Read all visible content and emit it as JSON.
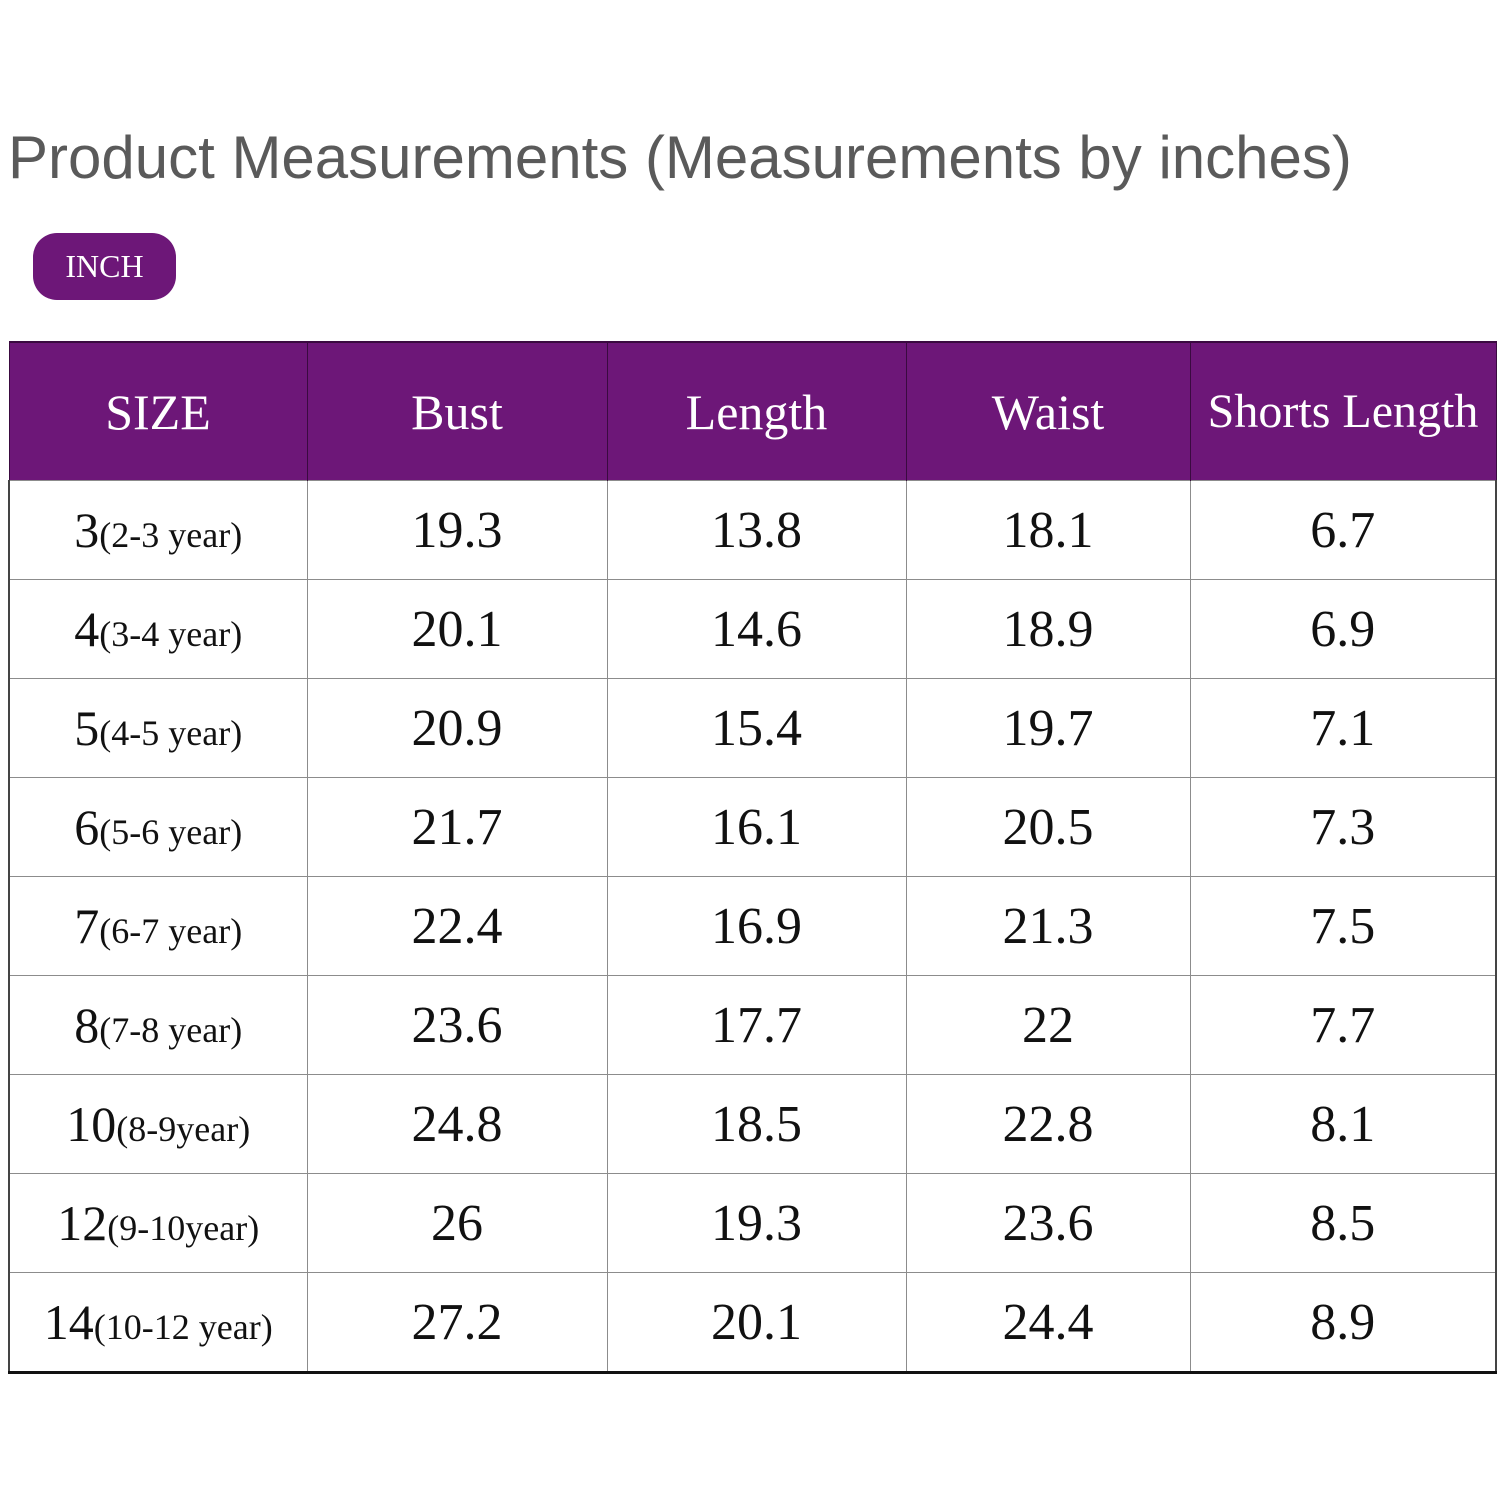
{
  "title": "Product Measurements (Measurements by inches)",
  "unit_badge": "INCH",
  "colors": {
    "header_bg": "#6d1778",
    "header_text": "#ffffff",
    "title_text": "#5a5a5a"
  },
  "table": {
    "columns": [
      "SIZE",
      "Bust",
      "Length",
      "Waist",
      "Shorts Length"
    ],
    "rows": [
      {
        "size": "3",
        "age": "(2-3 year)",
        "bust": "19.3",
        "length": "13.8",
        "waist": "18.1",
        "shorts_length": "6.7"
      },
      {
        "size": "4",
        "age": "(3-4 year)",
        "bust": "20.1",
        "length": "14.6",
        "waist": "18.9",
        "shorts_length": "6.9"
      },
      {
        "size": "5",
        "age": "(4-5 year)",
        "bust": "20.9",
        "length": "15.4",
        "waist": "19.7",
        "shorts_length": "7.1"
      },
      {
        "size": "6",
        "age": "(5-6 year)",
        "bust": "21.7",
        "length": "16.1",
        "waist": "20.5",
        "shorts_length": "7.3"
      },
      {
        "size": "7",
        "age": "(6-7 year)",
        "bust": "22.4",
        "length": "16.9",
        "waist": "21.3",
        "shorts_length": "7.5"
      },
      {
        "size": "8",
        "age": "(7-8 year)",
        "bust": "23.6",
        "length": "17.7",
        "waist": "22",
        "shorts_length": "7.7"
      },
      {
        "size": "10",
        "age": "(8-9year)",
        "bust": "24.8",
        "length": "18.5",
        "waist": "22.8",
        "shorts_length": "8.1"
      },
      {
        "size": "12",
        "age": "(9-10year)",
        "bust": "26",
        "length": "19.3",
        "waist": "23.6",
        "shorts_length": "8.5"
      },
      {
        "size": "14",
        "age": "(10-12 year)",
        "bust": "27.2",
        "length": "20.1",
        "waist": "24.4",
        "shorts_length": "8.9"
      }
    ]
  }
}
